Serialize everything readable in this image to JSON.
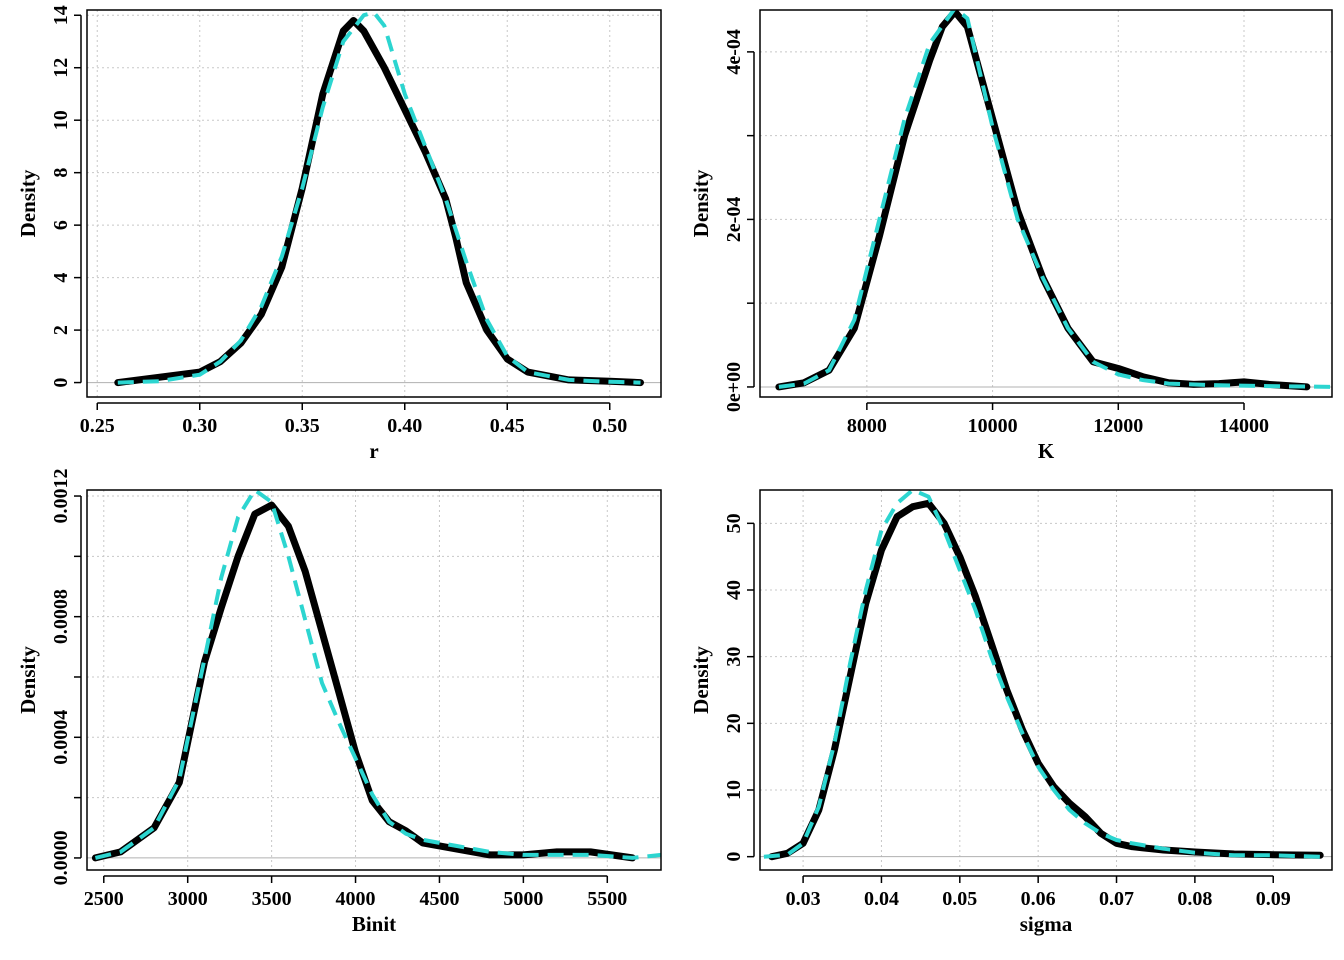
{
  "colors": {
    "empirical": "#000000",
    "fitted": "#2cd5d0",
    "grid": "#c8c8c8",
    "background": "#ffffff"
  },
  "chart_data": [
    {
      "type": "line",
      "xlabel": "r",
      "ylabel": "Density",
      "xlim": [
        0.245,
        0.525
      ],
      "ylim": [
        -0.55,
        14.2
      ],
      "xticks": [
        0.25,
        0.3,
        0.35,
        0.4,
        0.45,
        0.5
      ],
      "xtick_labels": [
        "0.25",
        "0.30",
        "0.35",
        "0.40",
        "0.45",
        "0.50"
      ],
      "yticks": [
        0,
        2,
        4,
        6,
        8,
        10,
        12,
        14
      ],
      "ytick_labels": [
        "0",
        "2",
        "4",
        "6",
        "8",
        "10",
        "12",
        "14"
      ],
      "grid": true,
      "series": [
        {
          "style": "solid-thick-black",
          "x": [
            0.26,
            0.28,
            0.3,
            0.31,
            0.32,
            0.33,
            0.34,
            0.35,
            0.36,
            0.37,
            0.375,
            0.38,
            0.39,
            0.4,
            0.41,
            0.42,
            0.425,
            0.43,
            0.44,
            0.45,
            0.46,
            0.48,
            0.5,
            0.515
          ],
          "values": [
            0.0,
            0.2,
            0.4,
            0.8,
            1.5,
            2.6,
            4.4,
            7.4,
            11.0,
            13.4,
            13.8,
            13.4,
            12.0,
            10.4,
            8.8,
            7.0,
            5.5,
            3.8,
            2.0,
            0.9,
            0.4,
            0.1,
            0.05,
            0.0
          ]
        },
        {
          "style": "dashed-cyan",
          "x": [
            0.26,
            0.28,
            0.3,
            0.31,
            0.32,
            0.33,
            0.34,
            0.35,
            0.36,
            0.37,
            0.38,
            0.385,
            0.39,
            0.4,
            0.41,
            0.42,
            0.43,
            0.44,
            0.45,
            0.46,
            0.48,
            0.5,
            0.515
          ],
          "values": [
            0.0,
            0.05,
            0.3,
            0.8,
            1.6,
            2.9,
            4.8,
            7.4,
            10.5,
            13.0,
            14.0,
            14.1,
            13.6,
            11.0,
            9.0,
            7.0,
            4.6,
            2.4,
            1.0,
            0.4,
            0.1,
            0.03,
            0.0
          ]
        }
      ]
    },
    {
      "type": "line",
      "xlabel": "K",
      "ylabel": "Density",
      "xlim": [
        6300,
        15400
      ],
      "ylim": [
        -1.2e-05,
        0.00045
      ],
      "xticks": [
        8000,
        10000,
        12000,
        14000
      ],
      "xtick_labels": [
        "8000",
        "10000",
        "12000",
        "14000"
      ],
      "yticks": [
        0,
        0.0001,
        0.0002,
        0.0003,
        0.0004
      ],
      "ytick_labels": [
        "0e+00",
        "",
        "2e-04",
        "",
        "4e-04"
      ],
      "grid": true,
      "series": [
        {
          "style": "solid-thick-black",
          "x": [
            6600,
            7000,
            7400,
            7800,
            8200,
            8600,
            9000,
            9200,
            9400,
            9600,
            10000,
            10400,
            10800,
            11200,
            11600,
            12000,
            12400,
            12800,
            13200,
            13600,
            14000,
            14400,
            15000
          ],
          "values": [
            0.0,
            5e-06,
            2e-05,
            7e-05,
            0.00018,
            0.0003,
            0.00039,
            0.00043,
            0.000448,
            0.00043,
            0.00032,
            0.00021,
            0.00013,
            7e-05,
            3e-05,
            2.2e-05,
            1.2e-05,
            5e-06,
            3e-06,
            4e-06,
            6e-06,
            3e-06,
            0.0
          ]
        },
        {
          "style": "dashed-cyan",
          "x": [
            6600,
            7000,
            7400,
            7800,
            8200,
            8600,
            9000,
            9400,
            9600,
            10000,
            10400,
            10800,
            11200,
            11600,
            12000,
            12400,
            12800,
            13600,
            14400,
            15400
          ],
          "values": [
            0.0,
            4e-06,
            2e-05,
            8e-05,
            0.0002,
            0.00032,
            0.00041,
            0.000452,
            0.00044,
            0.00031,
            0.0002,
            0.00013,
            7e-05,
            3e-05,
            1.5e-05,
            8e-06,
            4e-06,
            2e-06,
            1e-06,
            0.0
          ]
        }
      ]
    },
    {
      "type": "line",
      "xlabel": "Binit",
      "ylabel": "Density",
      "xlim": [
        2400,
        5820
      ],
      "ylim": [
        -4e-05,
        0.00122
      ],
      "xticks": [
        2500,
        3000,
        3500,
        4000,
        4500,
        5000,
        5500
      ],
      "xtick_labels": [
        "2500",
        "3000",
        "3500",
        "4000",
        "4500",
        "5000",
        "5500"
      ],
      "yticks": [
        0,
        0.0002,
        0.0004,
        0.0006,
        0.0008,
        0.001,
        0.0012
      ],
      "ytick_labels": [
        "0.0000",
        "",
        "0.0004",
        "",
        "0.0008",
        "",
        "0.0012"
      ],
      "grid": true,
      "series": [
        {
          "style": "solid-thick-black",
          "x": [
            2450,
            2600,
            2800,
            2950,
            3100,
            3200,
            3300,
            3400,
            3500,
            3600,
            3700,
            3800,
            3900,
            4000,
            4100,
            4200,
            4300,
            4400,
            4500,
            4600,
            4800,
            5000,
            5200,
            5400,
            5650
          ],
          "values": [
            0.0,
            2e-05,
            0.0001,
            0.00025,
            0.00065,
            0.00083,
            0.001,
            0.00114,
            0.00117,
            0.0011,
            0.00095,
            0.00075,
            0.00055,
            0.00035,
            0.00019,
            0.00012,
            9e-05,
            5e-05,
            4e-05,
            3e-05,
            1e-05,
            1e-05,
            2e-05,
            2e-05,
            0.0
          ]
        },
        {
          "style": "dashed-cyan",
          "x": [
            2450,
            2600,
            2800,
            2950,
            3100,
            3200,
            3300,
            3400,
            3500,
            3600,
            3700,
            3800,
            3900,
            4000,
            4100,
            4200,
            4300,
            4400,
            4500,
            4600,
            4800,
            5000,
            5200,
            5400,
            5650,
            5820
          ],
          "values": [
            0.0,
            2e-05,
            0.0001,
            0.00026,
            0.00066,
            0.00093,
            0.00113,
            0.00122,
            0.00118,
            0.001,
            0.00079,
            0.00058,
            0.00045,
            0.00033,
            0.00021,
            0.00012,
            8e-05,
            6e-05,
            5e-05,
            4e-05,
            2e-05,
            1e-05,
            1e-05,
            1e-05,
            0.0,
            1e-05
          ]
        }
      ]
    },
    {
      "type": "line",
      "xlabel": "sigma",
      "ylabel": "Density",
      "xlim": [
        0.0245,
        0.0975
      ],
      "ylim": [
        -2.0,
        55.0
      ],
      "xticks": [
        0.03,
        0.04,
        0.05,
        0.06,
        0.07,
        0.08,
        0.09
      ],
      "xtick_labels": [
        "0.03",
        "0.04",
        "0.05",
        "0.06",
        "0.07",
        "0.08",
        "0.09"
      ],
      "yticks": [
        0,
        10,
        20,
        30,
        40,
        50
      ],
      "ytick_labels": [
        "0",
        "10",
        "20",
        "30",
        "40",
        "50"
      ],
      "grid": true,
      "series": [
        {
          "style": "solid-thick-black",
          "x": [
            0.026,
            0.028,
            0.03,
            0.032,
            0.034,
            0.036,
            0.038,
            0.04,
            0.042,
            0.044,
            0.046,
            0.048,
            0.05,
            0.052,
            0.054,
            0.056,
            0.058,
            0.06,
            0.062,
            0.064,
            0.066,
            0.068,
            0.07,
            0.072,
            0.076,
            0.08,
            0.085,
            0.09,
            0.096
          ],
          "values": [
            0.0,
            0.5,
            2.0,
            7.0,
            16.0,
            27.0,
            38.0,
            46.0,
            51.0,
            52.5,
            53.0,
            50.0,
            45.0,
            39.0,
            32.0,
            25.0,
            19.0,
            14.0,
            10.5,
            8.0,
            6.0,
            3.5,
            2.0,
            1.5,
            1.0,
            0.7,
            0.4,
            0.3,
            0.2
          ]
        },
        {
          "style": "dashed-cyan",
          "x": [
            0.025,
            0.028,
            0.03,
            0.032,
            0.034,
            0.036,
            0.038,
            0.04,
            0.042,
            0.044,
            0.046,
            0.048,
            0.05,
            0.052,
            0.054,
            0.056,
            0.058,
            0.06,
            0.062,
            0.064,
            0.066,
            0.068,
            0.07,
            0.072,
            0.076,
            0.08,
            0.085,
            0.09,
            0.096
          ],
          "values": [
            0.0,
            0.3,
            2.0,
            7.5,
            17.0,
            29.0,
            40.0,
            49.0,
            53.0,
            55.0,
            54.0,
            49.0,
            43.0,
            37.0,
            30.0,
            24.0,
            18.5,
            13.5,
            10.0,
            7.0,
            5.0,
            3.5,
            2.5,
            2.0,
            1.2,
            0.6,
            0.2,
            0.2,
            0.0
          ]
        }
      ]
    }
  ]
}
